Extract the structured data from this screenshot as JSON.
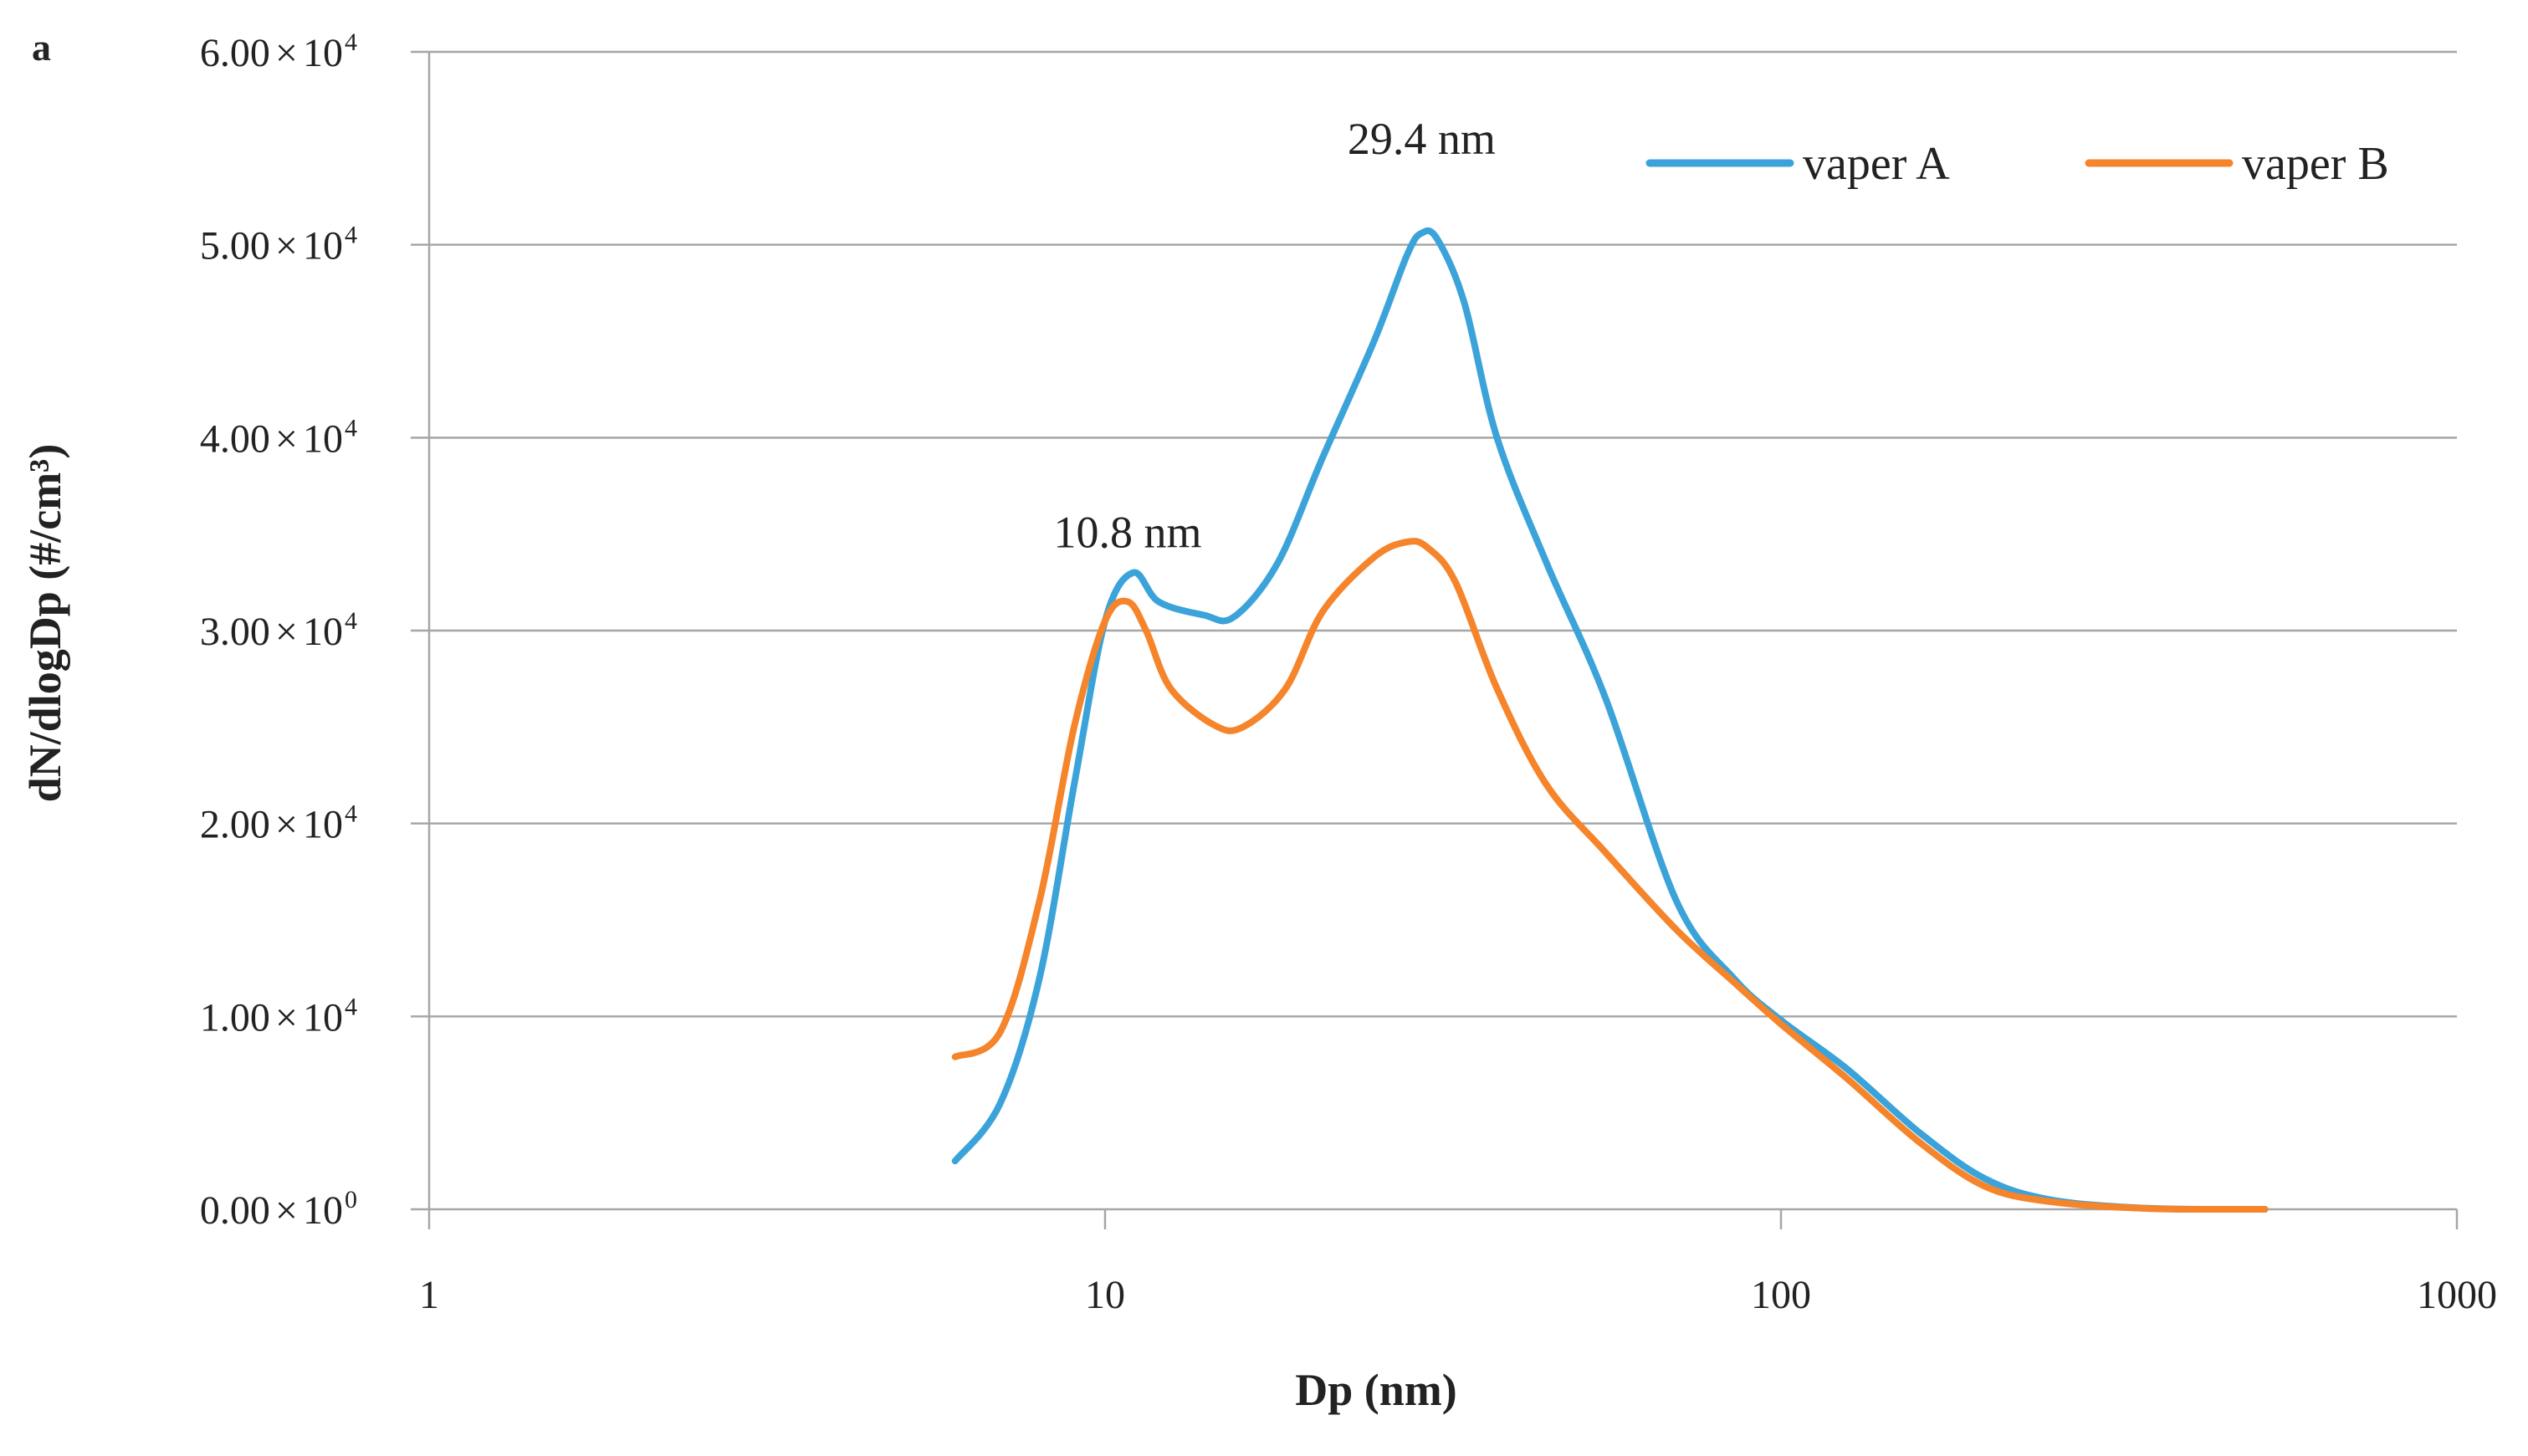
{
  "panel_label": "a",
  "chart_data": {
    "type": "line",
    "xscale": "log",
    "xlim": [
      1,
      1000
    ],
    "ylim": [
      0,
      60000
    ],
    "grid": true,
    "legend_position": "top-right",
    "xlabel": "Dp (nm)",
    "ylabel": "dN/dlogDp (#/cm³)",
    "x_ticks": [
      {
        "value": 1,
        "label": "1"
      },
      {
        "value": 10,
        "label": "10"
      },
      {
        "value": 100,
        "label": "100"
      },
      {
        "value": 1000,
        "label": "1000"
      }
    ],
    "y_ticks": [
      {
        "value": 0,
        "mantissa": "0.00",
        "times": "×",
        "base": "10",
        "exp": "0"
      },
      {
        "value": 10000,
        "mantissa": "1.00",
        "times": "×",
        "base": "10",
        "exp": "4"
      },
      {
        "value": 20000,
        "mantissa": "2.00",
        "times": "×",
        "base": "10",
        "exp": "4"
      },
      {
        "value": 30000,
        "mantissa": "3.00",
        "times": "×",
        "base": "10",
        "exp": "4"
      },
      {
        "value": 40000,
        "mantissa": "4.00",
        "times": "×",
        "base": "10",
        "exp": "4"
      },
      {
        "value": 50000,
        "mantissa": "5.00",
        "times": "×",
        "base": "10",
        "exp": "4"
      },
      {
        "value": 60000,
        "mantissa": "6.00",
        "times": "×",
        "base": "10",
        "exp": "4"
      }
    ],
    "series": [
      {
        "name": "vaper A",
        "color": "#3ba3d9",
        "points": [
          [
            6.0,
            2500
          ],
          [
            7.0,
            5500
          ],
          [
            8.0,
            12000
          ],
          [
            9.0,
            22000
          ],
          [
            10.0,
            30500
          ],
          [
            11.0,
            33000
          ],
          [
            12.0,
            31500
          ],
          [
            14.0,
            30800
          ],
          [
            15.5,
            30700
          ],
          [
            18.0,
            33500
          ],
          [
            21.0,
            39000
          ],
          [
            25.0,
            45000
          ],
          [
            28.0,
            49500
          ],
          [
            29.4,
            50600
          ],
          [
            31.0,
            50300
          ],
          [
            34.0,
            47000
          ],
          [
            38.0,
            40000
          ],
          [
            45.0,
            33500
          ],
          [
            55.0,
            26500
          ],
          [
            70.0,
            16000
          ],
          [
            85.0,
            12000
          ],
          [
            100.0,
            9800
          ],
          [
            125.0,
            7300
          ],
          [
            160.0,
            4000
          ],
          [
            200.0,
            1600
          ],
          [
            250.0,
            500
          ],
          [
            350.0,
            50
          ],
          [
            520.0,
            0
          ]
        ]
      },
      {
        "name": "vaper B",
        "color": "#f5842b",
        "points": [
          [
            6.0,
            7900
          ],
          [
            7.0,
            9200
          ],
          [
            8.0,
            16000
          ],
          [
            9.0,
            25000
          ],
          [
            10.0,
            30500
          ],
          [
            10.8,
            31500
          ],
          [
            11.5,
            30000
          ],
          [
            12.5,
            27000
          ],
          [
            14.5,
            25100
          ],
          [
            16.0,
            25000
          ],
          [
            18.5,
            27000
          ],
          [
            21.0,
            31000
          ],
          [
            25.0,
            33800
          ],
          [
            28.0,
            34600
          ],
          [
            30.0,
            34300
          ],
          [
            33.0,
            32500
          ],
          [
            38.0,
            27000
          ],
          [
            45.0,
            22000
          ],
          [
            55.0,
            18500
          ],
          [
            70.0,
            14500
          ],
          [
            85.0,
            11800
          ],
          [
            100.0,
            9600
          ],
          [
            125.0,
            6800
          ],
          [
            160.0,
            3500
          ],
          [
            200.0,
            1200
          ],
          [
            250.0,
            400
          ],
          [
            350.0,
            40
          ],
          [
            520.0,
            0
          ]
        ]
      }
    ],
    "annotations": [
      {
        "text": "29.4 nm",
        "x": 29.4,
        "y": 55500
      },
      {
        "text": "10.8 nm",
        "x": 10.8,
        "y": 35100
      }
    ]
  }
}
